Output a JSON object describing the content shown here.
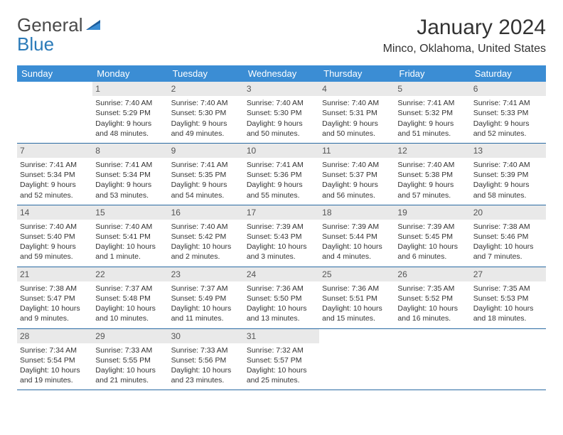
{
  "brand": {
    "general": "General",
    "blue": "Blue"
  },
  "title": "January 2024",
  "location": "Minco, Oklahoma, United States",
  "colors": {
    "header_bg": "#3b8dd4",
    "header_text": "#ffffff",
    "daynum_bg": "#e9e9e9",
    "row_border": "#2a6aa3",
    "logo_blue": "#2a7ab8"
  },
  "daysOfWeek": [
    "Sunday",
    "Monday",
    "Tuesday",
    "Wednesday",
    "Thursday",
    "Friday",
    "Saturday"
  ],
  "weeks": [
    [
      {
        "num": "",
        "sunrise": "",
        "sunset": "",
        "daylight": ""
      },
      {
        "num": "1",
        "sunrise": "Sunrise: 7:40 AM",
        "sunset": "Sunset: 5:29 PM",
        "daylight": "Daylight: 9 hours and 48 minutes."
      },
      {
        "num": "2",
        "sunrise": "Sunrise: 7:40 AM",
        "sunset": "Sunset: 5:30 PM",
        "daylight": "Daylight: 9 hours and 49 minutes."
      },
      {
        "num": "3",
        "sunrise": "Sunrise: 7:40 AM",
        "sunset": "Sunset: 5:30 PM",
        "daylight": "Daylight: 9 hours and 50 minutes."
      },
      {
        "num": "4",
        "sunrise": "Sunrise: 7:40 AM",
        "sunset": "Sunset: 5:31 PM",
        "daylight": "Daylight: 9 hours and 50 minutes."
      },
      {
        "num": "5",
        "sunrise": "Sunrise: 7:41 AM",
        "sunset": "Sunset: 5:32 PM",
        "daylight": "Daylight: 9 hours and 51 minutes."
      },
      {
        "num": "6",
        "sunrise": "Sunrise: 7:41 AM",
        "sunset": "Sunset: 5:33 PM",
        "daylight": "Daylight: 9 hours and 52 minutes."
      }
    ],
    [
      {
        "num": "7",
        "sunrise": "Sunrise: 7:41 AM",
        "sunset": "Sunset: 5:34 PM",
        "daylight": "Daylight: 9 hours and 52 minutes."
      },
      {
        "num": "8",
        "sunrise": "Sunrise: 7:41 AM",
        "sunset": "Sunset: 5:34 PM",
        "daylight": "Daylight: 9 hours and 53 minutes."
      },
      {
        "num": "9",
        "sunrise": "Sunrise: 7:41 AM",
        "sunset": "Sunset: 5:35 PM",
        "daylight": "Daylight: 9 hours and 54 minutes."
      },
      {
        "num": "10",
        "sunrise": "Sunrise: 7:41 AM",
        "sunset": "Sunset: 5:36 PM",
        "daylight": "Daylight: 9 hours and 55 minutes."
      },
      {
        "num": "11",
        "sunrise": "Sunrise: 7:40 AM",
        "sunset": "Sunset: 5:37 PM",
        "daylight": "Daylight: 9 hours and 56 minutes."
      },
      {
        "num": "12",
        "sunrise": "Sunrise: 7:40 AM",
        "sunset": "Sunset: 5:38 PM",
        "daylight": "Daylight: 9 hours and 57 minutes."
      },
      {
        "num": "13",
        "sunrise": "Sunrise: 7:40 AM",
        "sunset": "Sunset: 5:39 PM",
        "daylight": "Daylight: 9 hours and 58 minutes."
      }
    ],
    [
      {
        "num": "14",
        "sunrise": "Sunrise: 7:40 AM",
        "sunset": "Sunset: 5:40 PM",
        "daylight": "Daylight: 9 hours and 59 minutes."
      },
      {
        "num": "15",
        "sunrise": "Sunrise: 7:40 AM",
        "sunset": "Sunset: 5:41 PM",
        "daylight": "Daylight: 10 hours and 1 minute."
      },
      {
        "num": "16",
        "sunrise": "Sunrise: 7:40 AM",
        "sunset": "Sunset: 5:42 PM",
        "daylight": "Daylight: 10 hours and 2 minutes."
      },
      {
        "num": "17",
        "sunrise": "Sunrise: 7:39 AM",
        "sunset": "Sunset: 5:43 PM",
        "daylight": "Daylight: 10 hours and 3 minutes."
      },
      {
        "num": "18",
        "sunrise": "Sunrise: 7:39 AM",
        "sunset": "Sunset: 5:44 PM",
        "daylight": "Daylight: 10 hours and 4 minutes."
      },
      {
        "num": "19",
        "sunrise": "Sunrise: 7:39 AM",
        "sunset": "Sunset: 5:45 PM",
        "daylight": "Daylight: 10 hours and 6 minutes."
      },
      {
        "num": "20",
        "sunrise": "Sunrise: 7:38 AM",
        "sunset": "Sunset: 5:46 PM",
        "daylight": "Daylight: 10 hours and 7 minutes."
      }
    ],
    [
      {
        "num": "21",
        "sunrise": "Sunrise: 7:38 AM",
        "sunset": "Sunset: 5:47 PM",
        "daylight": "Daylight: 10 hours and 9 minutes."
      },
      {
        "num": "22",
        "sunrise": "Sunrise: 7:37 AM",
        "sunset": "Sunset: 5:48 PM",
        "daylight": "Daylight: 10 hours and 10 minutes."
      },
      {
        "num": "23",
        "sunrise": "Sunrise: 7:37 AM",
        "sunset": "Sunset: 5:49 PM",
        "daylight": "Daylight: 10 hours and 11 minutes."
      },
      {
        "num": "24",
        "sunrise": "Sunrise: 7:36 AM",
        "sunset": "Sunset: 5:50 PM",
        "daylight": "Daylight: 10 hours and 13 minutes."
      },
      {
        "num": "25",
        "sunrise": "Sunrise: 7:36 AM",
        "sunset": "Sunset: 5:51 PM",
        "daylight": "Daylight: 10 hours and 15 minutes."
      },
      {
        "num": "26",
        "sunrise": "Sunrise: 7:35 AM",
        "sunset": "Sunset: 5:52 PM",
        "daylight": "Daylight: 10 hours and 16 minutes."
      },
      {
        "num": "27",
        "sunrise": "Sunrise: 7:35 AM",
        "sunset": "Sunset: 5:53 PM",
        "daylight": "Daylight: 10 hours and 18 minutes."
      }
    ],
    [
      {
        "num": "28",
        "sunrise": "Sunrise: 7:34 AM",
        "sunset": "Sunset: 5:54 PM",
        "daylight": "Daylight: 10 hours and 19 minutes."
      },
      {
        "num": "29",
        "sunrise": "Sunrise: 7:33 AM",
        "sunset": "Sunset: 5:55 PM",
        "daylight": "Daylight: 10 hours and 21 minutes."
      },
      {
        "num": "30",
        "sunrise": "Sunrise: 7:33 AM",
        "sunset": "Sunset: 5:56 PM",
        "daylight": "Daylight: 10 hours and 23 minutes."
      },
      {
        "num": "31",
        "sunrise": "Sunrise: 7:32 AM",
        "sunset": "Sunset: 5:57 PM",
        "daylight": "Daylight: 10 hours and 25 minutes."
      },
      {
        "num": "",
        "sunrise": "",
        "sunset": "",
        "daylight": ""
      },
      {
        "num": "",
        "sunrise": "",
        "sunset": "",
        "daylight": ""
      },
      {
        "num": "",
        "sunrise": "",
        "sunset": "",
        "daylight": ""
      }
    ]
  ]
}
